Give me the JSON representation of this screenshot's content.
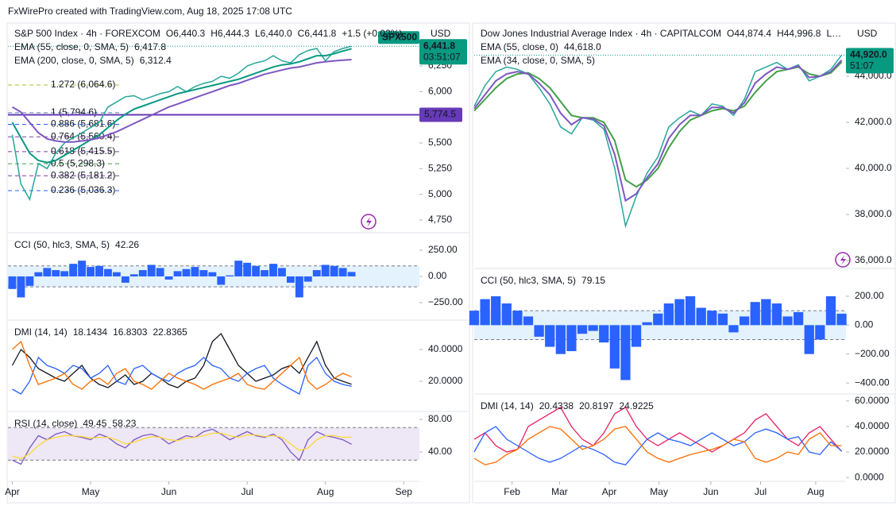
{
  "header": "FxWirePro created with TradingView.com, Aug 18, 2025 17:08 UTC",
  "chart_data": [
    {
      "type": "line",
      "title": "S&P 500 Index · 4h · FOREXCOM",
      "ohlc": [
        "O6,440.3",
        "H6,444.3",
        "L6,440.0",
        "C6,441.8"
      ],
      "change": "+1.5 (+0.02%)",
      "currency": "USD",
      "color": "#26a69a",
      "values": [
        5580,
        5100,
        4950,
        5300,
        5250,
        5400,
        5500,
        5550,
        5600,
        5650,
        5700,
        5850,
        5900,
        5950,
        5960,
        5920,
        5950,
        5980,
        6000,
        6050,
        6000,
        6050,
        6080,
        6100,
        6150,
        6130,
        6180,
        6250,
        6280,
        6300,
        6350,
        6300,
        6280,
        6360,
        6400,
        6420,
        6300,
        6390,
        6420,
        6441.8
      ],
      "series": [
        {
          "name": "EMA (55, close, 0, SMA, 5)",
          "legend_value": "6,417.8",
          "color": "#089981",
          "values": [
            5700,
            5550,
            5400,
            5330,
            5310,
            5330,
            5380,
            5430,
            5480,
            5530,
            5580,
            5650,
            5720,
            5780,
            5830,
            5860,
            5890,
            5920,
            5950,
            5980,
            6000,
            6020,
            6040,
            6060,
            6080,
            6100,
            6120,
            6150,
            6180,
            6210,
            6240,
            6260,
            6270,
            6290,
            6320,
            6350,
            6350,
            6370,
            6395,
            6417.8
          ]
        },
        {
          "name": "EMA (200, close, 0, SMA, 5)",
          "legend_value": "6,312.4",
          "color": "#7e57c2",
          "values": [
            5850,
            5800,
            5700,
            5600,
            5540,
            5520,
            5510,
            5510,
            5520,
            5530,
            5550,
            5580,
            5610,
            5650,
            5690,
            5730,
            5770,
            5810,
            5850,
            5880,
            5910,
            5940,
            5970,
            6000,
            6030,
            6060,
            6080,
            6110,
            6140,
            6170,
            6190,
            6210,
            6230,
            6240,
            6260,
            6280,
            6290,
            6300,
            6306,
            6312.4
          ]
        }
      ],
      "annotations": [
        {
          "value": 6064.6,
          "label": "1.272 (6,064.6)",
          "color": "#9ac43b"
        },
        {
          "value": 5794.6,
          "label": "1 (5,794.6)",
          "color": "#5d7dae"
        },
        {
          "value": 5681.6,
          "label": "0.886 (5,681.6)",
          "color": "#2962ff"
        },
        {
          "value": 5560.4,
          "label": "0.764 (5,560.4)",
          "color": "#7b3fa0"
        },
        {
          "value": 5415.5,
          "label": "0.618 (5,415.5)",
          "color": "#7b3fa0"
        },
        {
          "value": 5298.3,
          "label": "0.5 (5,298.3)",
          "color": "#43a047"
        },
        {
          "value": 5181.2,
          "label": "0.382 (5,181.2)",
          "color": "#7b3fa0"
        },
        {
          "value": 5036.3,
          "label": "0.236 (5,036.3)",
          "color": "#2962ff"
        }
      ],
      "hline": {
        "value": 5774.5,
        "label": "5,774.5",
        "color": "#673ab7"
      },
      "price_tag": {
        "value": 6441.8,
        "label": "6,441.8",
        "countdown": "03:51:07",
        "symbol": "SPX500",
        "color": "#089981"
      },
      "ylim": [
        4634,
        6660
      ],
      "yticks": [
        {
          "value": 4750,
          "label": "4,750"
        },
        {
          "value": 5000,
          "label": "5,000"
        },
        {
          "value": 5250,
          "label": "5,250"
        },
        {
          "value": 5500,
          "label": "5,500"
        },
        {
          "value": 6000,
          "label": "6,000"
        },
        {
          "value": 6250,
          "label": "6,250"
        }
      ],
      "xlim": [
        -0.5,
        46.8
      ],
      "xticks": [
        {
          "value": 0,
          "label": "Apr"
        },
        {
          "value": 9,
          "label": "May"
        },
        {
          "value": 18,
          "label": "Jun"
        },
        {
          "value": 27,
          "label": "Jul"
        },
        {
          "value": 36,
          "label": "Aug"
        },
        {
          "value": 45,
          "label": "Sep"
        }
      ]
    },
    {
      "type": "bar",
      "title": "CCI (50, hlc3, SMA, 5)",
      "legend_value": 42.26,
      "color": "#2962ff",
      "values": [
        -120,
        -200,
        -90,
        40,
        80,
        60,
        50,
        120,
        150,
        90,
        100,
        70,
        40,
        -60,
        20,
        60,
        110,
        80,
        -30,
        50,
        70,
        90,
        60,
        40,
        -80,
        10,
        150,
        130,
        100,
        60,
        120,
        80,
        -60,
        -200,
        -50,
        60,
        110,
        100,
        80,
        42.26
      ],
      "band": [
        -100,
        100
      ],
      "band_color": "#e3f2fd",
      "ylim": [
        -409,
        401
      ],
      "yticks": [
        {
          "value": 250,
          "label": "250.00"
        },
        {
          "value": 0,
          "label": "0.00"
        },
        {
          "value": -250,
          "label": "−250.00"
        }
      ]
    },
    {
      "type": "line",
      "title": "DMI (14, 14)",
      "series": [
        {
          "legend_value": 18.1434,
          "color": "#131722",
          "values": [
            30,
            40,
            35,
            28,
            25,
            22,
            20,
            25,
            30,
            22,
            18,
            16,
            20,
            24,
            18,
            20,
            25,
            22,
            18,
            16,
            20,
            22,
            30,
            45,
            50,
            40,
            30,
            25,
            20,
            22,
            24,
            28,
            30,
            25,
            35,
            45,
            30,
            22,
            20,
            18.1434
          ]
        },
        {
          "legend_value": 16.8303,
          "color": "#2962ff",
          "values": [
            15,
            12,
            20,
            35,
            30,
            28,
            25,
            30,
            28,
            22,
            25,
            30,
            20,
            18,
            28,
            30,
            25,
            22,
            20,
            25,
            28,
            30,
            35,
            30,
            28,
            22,
            20,
            25,
            28,
            30,
            22,
            18,
            15,
            12,
            30,
            35,
            25,
            20,
            18,
            16.8303
          ]
        },
        {
          "legend_value": 22.8365,
          "color": "#ff6d00",
          "values": [
            40,
            45,
            30,
            18,
            20,
            22,
            25,
            18,
            15,
            20,
            22,
            18,
            25,
            28,
            20,
            18,
            15,
            20,
            25,
            22,
            20,
            18,
            15,
            18,
            20,
            22,
            25,
            18,
            16,
            15,
            20,
            25,
            30,
            35,
            20,
            15,
            18,
            22,
            25,
            22.8365
          ]
        }
      ],
      "ylim": [
        1.5,
        57.5
      ],
      "yticks": [
        {
          "value": 20,
          "label": "20.0000"
        },
        {
          "value": 40,
          "label": "40.0000"
        }
      ]
    },
    {
      "type": "line",
      "title": "RSI (14, close)",
      "series": [
        {
          "legend_value": 49.45,
          "color": "#7e57c2",
          "values": [
            30,
            25,
            45,
            60,
            55,
            62,
            65,
            60,
            58,
            55,
            62,
            58,
            50,
            45,
            55,
            60,
            62,
            58,
            50,
            55,
            60,
            58,
            65,
            68,
            62,
            55,
            60,
            65,
            60,
            58,
            62,
            55,
            40,
            30,
            55,
            65,
            60,
            58,
            55,
            49.45
          ]
        },
        {
          "legend_value": 58.23,
          "color": "#fdd835",
          "values": [
            35,
            32,
            38,
            48,
            55,
            58,
            60,
            60,
            59,
            57,
            58,
            58,
            55,
            50,
            52,
            56,
            59,
            58,
            55,
            54,
            57,
            58,
            60,
            63,
            63,
            60,
            58,
            61,
            61,
            59,
            60,
            58,
            50,
            42,
            45,
            55,
            60,
            60,
            58,
            58.23
          ]
        }
      ],
      "band": [
        30,
        70
      ],
      "band_color": "#ede7f6",
      "ylim": [
        4.9,
        87.8
      ],
      "yticks": [
        {
          "value": 40,
          "label": "40.00"
        },
        {
          "value": 80,
          "label": "80.00"
        }
      ]
    },
    {
      "type": "line",
      "title": "Dow Jones Industrial Average Index · 4h · CAPITALCOM",
      "ohlc": [
        "O44,874.4",
        "H44,996.8",
        "L…"
      ],
      "currency": "USD",
      "color": "#26a69a",
      "values": [
        42700,
        43600,
        44200,
        44400,
        44300,
        44100,
        43500,
        42800,
        41800,
        41500,
        42200,
        42100,
        41700,
        40000,
        37500,
        38800,
        39800,
        40500,
        41800,
        42200,
        42500,
        42300,
        42800,
        42700,
        42300,
        43000,
        44200,
        44400,
        44600,
        44300,
        44500,
        43800,
        44000,
        44300,
        44920
      ],
      "series": [
        {
          "name": "EMA (55, close, 0)",
          "legend_value": "44,618.0",
          "color": "#43a047",
          "values": [
            42500,
            43000,
            43500,
            43900,
            44100,
            44150,
            43900,
            43500,
            42900,
            42300,
            42200,
            42200,
            42000,
            41200,
            39500,
            39200,
            39500,
            40000,
            40900,
            41600,
            42100,
            42300,
            42500,
            42600,
            42500,
            42700,
            43300,
            43800,
            44200,
            44300,
            44400,
            44100,
            44000,
            44150,
            44618
          ]
        },
        {
          "name": "EMA (34, close, 0, SMA, 5)",
          "color": "#7e57c2",
          "values": [
            42600,
            43200,
            43800,
            44100,
            44200,
            44100,
            43700,
            43200,
            42400,
            41900,
            42200,
            42150,
            41850,
            40600,
            38600,
            38900,
            39600,
            40200,
            41300,
            41900,
            42300,
            42300,
            42650,
            42650,
            42400,
            42850,
            43700,
            44100,
            44400,
            44300,
            44450,
            43950,
            44000,
            44200,
            44700
          ]
        }
      ],
      "price_tag": {
        "value": 44920,
        "label": "44,920.0",
        "countdown": "51:07",
        "color": "#089981"
      },
      "ylim": [
        35759,
        46276
      ],
      "yticks": [
        {
          "value": 36000,
          "label": "36,000.0"
        },
        {
          "value": 38000,
          "label": "38,000.0"
        },
        {
          "value": 40000,
          "label": "40,000.0"
        },
        {
          "value": 42000,
          "label": "42,000.0"
        },
        {
          "value": 44000,
          "label": "44,000.0"
        }
      ],
      "xlim": [
        0,
        34.4
      ],
      "xticks": [
        {
          "value": 3.5,
          "label": "Feb"
        },
        {
          "value": 7.9,
          "label": "Mar"
        },
        {
          "value": 12.5,
          "label": "Apr"
        },
        {
          "value": 17.1,
          "label": "May"
        },
        {
          "value": 21.9,
          "label": "Jun"
        },
        {
          "value": 26.5,
          "label": "Jul"
        },
        {
          "value": 31.6,
          "label": "Aug"
        }
      ]
    },
    {
      "type": "bar",
      "title": "CCI (50, hlc3, SMA, 5)",
      "legend_value": 79.15,
      "color": "#2962ff",
      "values": [
        100,
        180,
        200,
        150,
        100,
        60,
        -80,
        -150,
        -200,
        -180,
        -60,
        -40,
        -120,
        -300,
        -380,
        -150,
        20,
        80,
        150,
        180,
        200,
        120,
        100,
        80,
        -50,
        60,
        160,
        180,
        150,
        60,
        90,
        -200,
        -100,
        200,
        79.15
      ],
      "band": [
        -100,
        100
      ],
      "band_color": "#e3f2fd",
      "ylim": [
        -471,
        381
      ],
      "yticks": [
        {
          "value": 200,
          "label": "200.00"
        },
        {
          "value": 0,
          "label": "0.00"
        },
        {
          "value": -200,
          "label": "−200.00"
        },
        {
          "value": -400,
          "label": "−400.00"
        }
      ]
    },
    {
      "type": "line",
      "title": "DMI (14, 14)",
      "series": [
        {
          "legend_value": 20.4338,
          "color": "#e91e63",
          "values": [
            30,
            35,
            25,
            20,
            22,
            40,
            45,
            50,
            55,
            40,
            30,
            25,
            35,
            50,
            55,
            40,
            30,
            25,
            30,
            35,
            30,
            25,
            20,
            25,
            30,
            35,
            45,
            50,
            40,
            30,
            25,
            35,
            40,
            30,
            20.4338
          ]
        },
        {
          "legend_value": 20.8197,
          "color": "#2962ff",
          "values": [
            20,
            35,
            40,
            30,
            25,
            20,
            15,
            12,
            15,
            20,
            25,
            22,
            18,
            12,
            10,
            20,
            30,
            35,
            30,
            28,
            25,
            30,
            35,
            30,
            25,
            28,
            35,
            38,
            35,
            30,
            32,
            20,
            18,
            28,
            20.8197
          ]
        },
        {
          "legend_value": 24.9225,
          "color": "#ff6d00",
          "values": [
            15,
            10,
            12,
            18,
            22,
            30,
            35,
            40,
            38,
            30,
            22,
            25,
            30,
            38,
            40,
            30,
            20,
            15,
            12,
            15,
            18,
            20,
            22,
            25,
            30,
            28,
            15,
            12,
            15,
            20,
            18,
            30,
            35,
            25,
            24.9225
          ]
        }
      ],
      "ylim": [
        -2.4,
        64.2
      ],
      "yticks": [
        {
          "value": 0,
          "label": "0.0000"
        },
        {
          "value": 20,
          "label": "20.0000"
        },
        {
          "value": 40,
          "label": "40.0000"
        },
        {
          "value": 60,
          "label": "60.0000"
        }
      ]
    }
  ]
}
